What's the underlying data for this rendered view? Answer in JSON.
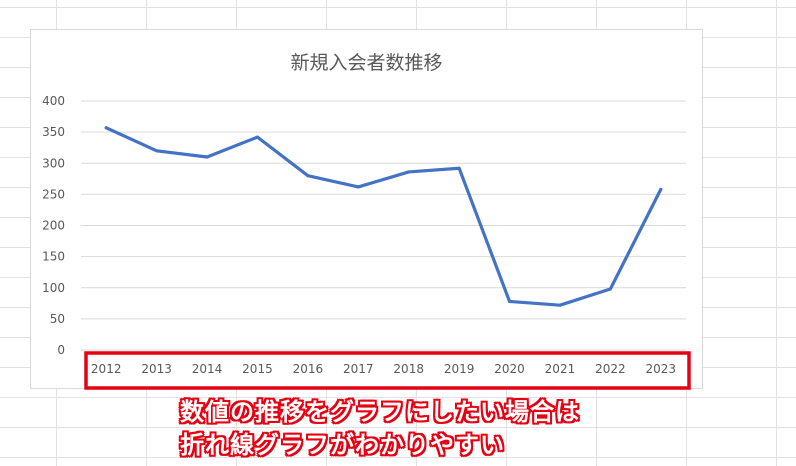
{
  "chart_data": {
    "type": "line",
    "title": "新規入会者数推移",
    "xlabel": "",
    "ylabel": "",
    "categories": [
      "2012",
      "2013",
      "2014",
      "2015",
      "2016",
      "2017",
      "2018",
      "2019",
      "2020",
      "2021",
      "2022",
      "2023"
    ],
    "values": [
      357,
      320,
      310,
      342,
      280,
      262,
      286,
      292,
      78,
      72,
      98,
      258
    ],
    "ylim": [
      0,
      400
    ],
    "yticks": [
      0,
      50,
      100,
      150,
      200,
      250,
      300,
      350,
      400
    ],
    "grid": true,
    "legend": "none",
    "line_color": "#4472c4"
  },
  "annotation": {
    "highlight_color": "#e60012",
    "caption_line_1": "数値の推移をグラフにしたい場合は",
    "caption_line_2": "折れ線グラフがわかりやすい"
  }
}
